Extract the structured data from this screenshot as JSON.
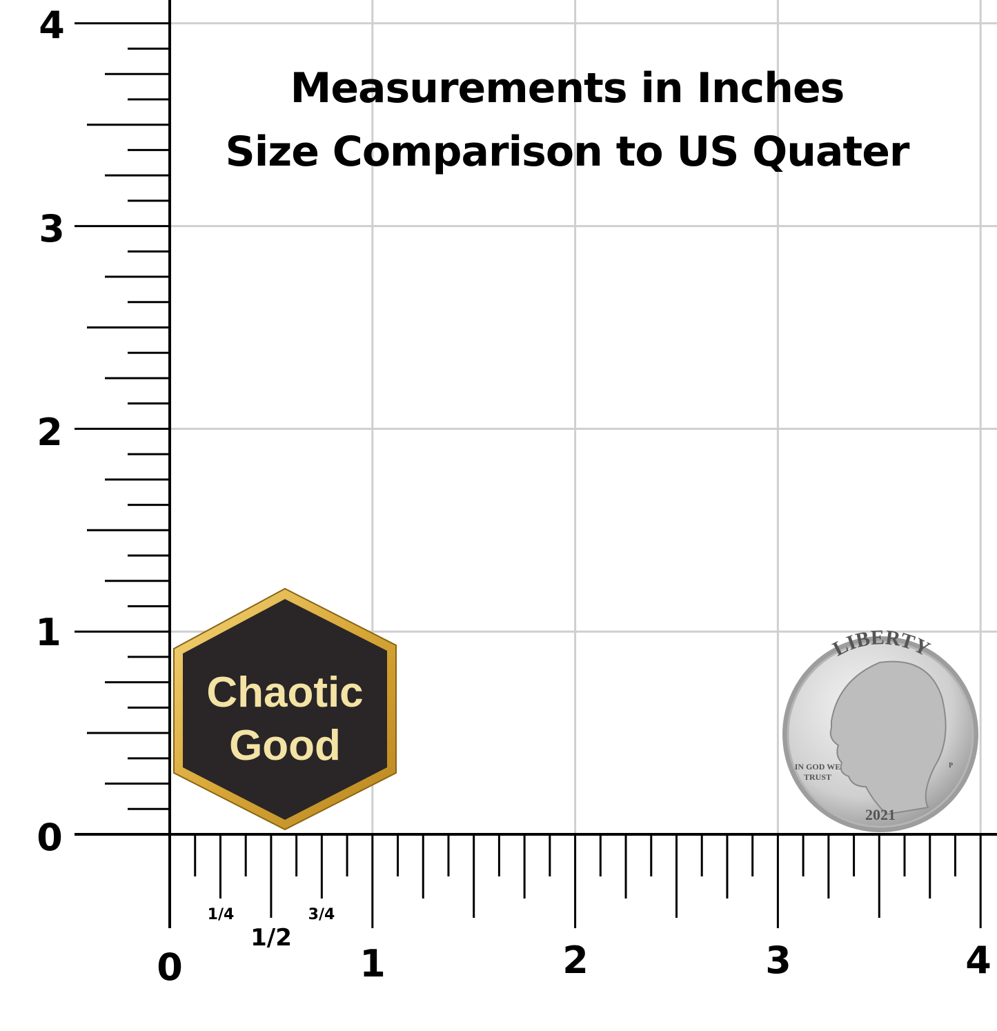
{
  "title": [
    "Measurements in Inches",
    "Size Comparison to US Quater"
  ],
  "y_axis": {
    "labels": [
      "4",
      "3",
      "2",
      "1",
      "0"
    ]
  },
  "x_axis": {
    "labels": [
      "0",
      "1",
      "2",
      "3",
      "4"
    ],
    "fractions": [
      "1/4",
      "1/2",
      "3/4"
    ]
  },
  "pin": {
    "lines": [
      "Chaotic",
      "Good"
    ]
  },
  "quarter": {
    "top": "LIBERTY",
    "motto": [
      "IN GOD WE",
      "TRUST"
    ],
    "year": "2021",
    "mint": "P"
  }
}
